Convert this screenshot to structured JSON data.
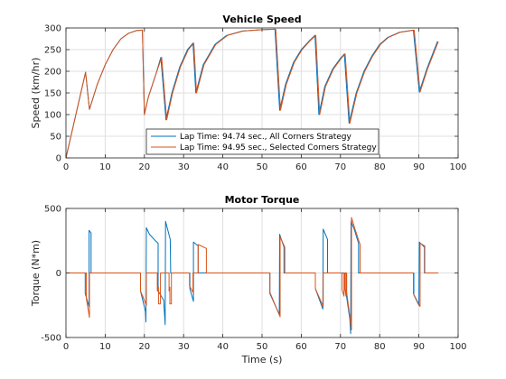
{
  "colors": {
    "series1": "#0072BD",
    "series2": "#D95319",
    "grid": "#dfdfdf",
    "axis": "#262626"
  },
  "chart_data": [
    {
      "type": "line",
      "title": "Vehicle Speed",
      "xlabel": "",
      "ylabel": "Speed (km/hr)",
      "xlim": [
        0,
        100
      ],
      "ylim": [
        0,
        300
      ],
      "xticks": [
        0,
        10,
        20,
        30,
        40,
        50,
        60,
        70,
        80,
        90,
        100
      ],
      "yticks": [
        0,
        50,
        100,
        150,
        200,
        250,
        300
      ],
      "grid": true,
      "legend_position": "bottom-center",
      "series": [
        {
          "name": "Lap Time: 94.74 sec., All Corners Strategy",
          "color": "#0072BD",
          "points": [
            [
              0,
              0
            ],
            [
              5,
              198
            ],
            [
              6,
              112
            ],
            [
              8,
              170
            ],
            [
              10,
              215
            ],
            [
              12,
              250
            ],
            [
              14,
              275
            ],
            [
              16,
              288
            ],
            [
              18,
              294
            ],
            [
              19.5,
              295
            ],
            [
              20,
              100
            ],
            [
              21,
              140
            ],
            [
              23,
              195
            ],
            [
              24.2,
              232
            ],
            [
              25.5,
              88
            ],
            [
              27,
              150
            ],
            [
              29,
              210
            ],
            [
              31,
              250
            ],
            [
              32.4,
              265
            ],
            [
              33.1,
              150
            ],
            [
              35,
              215
            ],
            [
              38,
              262
            ],
            [
              41,
              283
            ],
            [
              45,
              293
            ],
            [
              50,
              296
            ],
            [
              53.3,
              297
            ],
            [
              54.5,
              110
            ],
            [
              56,
              170
            ],
            [
              58,
              220
            ],
            [
              60,
              250
            ],
            [
              62,
              270
            ],
            [
              63.5,
              283
            ],
            [
              64.5,
              100
            ],
            [
              66,
              165
            ],
            [
              68,
              205
            ],
            [
              70,
              230
            ],
            [
              71,
              240
            ],
            [
              72.2,
              80
            ],
            [
              74,
              150
            ],
            [
              76,
              200
            ],
            [
              78,
              235
            ],
            [
              80,
              262
            ],
            [
              82,
              278
            ],
            [
              85,
              290
            ],
            [
              88.6,
              295
            ],
            [
              90.1,
              152
            ],
            [
              92,
              205
            ],
            [
              94.74,
              269
            ]
          ]
        },
        {
          "name": "Lap Time: 94.95 sec., Selected Corners Strategy",
          "color": "#D95319",
          "points": [
            [
              0,
              0
            ],
            [
              5,
              198
            ],
            [
              6,
              112
            ],
            [
              8,
              170
            ],
            [
              10,
              215
            ],
            [
              12,
              250
            ],
            [
              14,
              275
            ],
            [
              16,
              288
            ],
            [
              18,
              294
            ],
            [
              19.5,
              295
            ],
            [
              20,
              100
            ],
            [
              21,
              140
            ],
            [
              23,
              195
            ],
            [
              24.4,
              232
            ],
            [
              25.7,
              88
            ],
            [
              27.2,
              150
            ],
            [
              29.2,
              210
            ],
            [
              31.2,
              250
            ],
            [
              32.6,
              265
            ],
            [
              33.3,
              150
            ],
            [
              35.2,
              215
            ],
            [
              38.2,
              262
            ],
            [
              41.2,
              283
            ],
            [
              45.2,
              293
            ],
            [
              50.2,
              296
            ],
            [
              53.5,
              297
            ],
            [
              54.7,
              110
            ],
            [
              56.2,
              170
            ],
            [
              58.2,
              220
            ],
            [
              60.2,
              250
            ],
            [
              62.2,
              270
            ],
            [
              63.7,
              283
            ],
            [
              64.7,
              100
            ],
            [
              66.2,
              165
            ],
            [
              68.2,
              205
            ],
            [
              70.2,
              230
            ],
            [
              71.2,
              240
            ],
            [
              72.4,
              80
            ],
            [
              74.2,
              150
            ],
            [
              76.2,
              200
            ],
            [
              78.2,
              235
            ],
            [
              80.2,
              262
            ],
            [
              82.2,
              278
            ],
            [
              85.2,
              290
            ],
            [
              88.8,
              295
            ],
            [
              90.3,
              152
            ],
            [
              92.2,
              205
            ],
            [
              94.95,
              269
            ]
          ]
        }
      ]
    },
    {
      "type": "line",
      "title": "Motor Torque",
      "xlabel": "Time (s)",
      "ylabel": "Torque (N*m)",
      "xlim": [
        0,
        100
      ],
      "ylim": [
        -500,
        500
      ],
      "xticks": [
        0,
        10,
        20,
        30,
        40,
        50,
        60,
        70,
        80,
        90,
        100
      ],
      "yticks": [
        -500,
        0,
        500
      ],
      "grid": true,
      "series": [
        {
          "name": "Lap Time: 94.74 sec., All Corners Strategy",
          "color": "#0072BD",
          "points": [
            [
              0,
              0
            ],
            [
              4.9,
              0
            ],
            [
              4.9,
              -160
            ],
            [
              5.9,
              -260
            ],
            [
              5.9,
              330
            ],
            [
              6.4,
              310
            ],
            [
              6.4,
              0
            ],
            [
              19,
              0
            ],
            [
              19,
              -140
            ],
            [
              20.3,
              -300
            ],
            [
              20.4,
              -380
            ],
            [
              20.5,
              350
            ],
            [
              21.3,
              300
            ],
            [
              22.8,
              250
            ],
            [
              23.5,
              230
            ],
            [
              23.5,
              -140
            ],
            [
              24.9,
              -210
            ],
            [
              25.3,
              -400
            ],
            [
              25.4,
              400
            ],
            [
              26.6,
              260
            ],
            [
              26.7,
              0
            ],
            [
              31.6,
              0
            ],
            [
              31.6,
              -120
            ],
            [
              32.5,
              -220
            ],
            [
              32.5,
              240
            ],
            [
              33.7,
              210
            ],
            [
              33.7,
              0
            ],
            [
              52,
              0
            ],
            [
              52,
              -160
            ],
            [
              54.4,
              -320
            ],
            [
              54.5,
              300
            ],
            [
              55.6,
              200
            ],
            [
              55.6,
              0
            ],
            [
              63.6,
              0
            ],
            [
              63.6,
              -120
            ],
            [
              65.5,
              -280
            ],
            [
              65.6,
              340
            ],
            [
              66.7,
              260
            ],
            [
              66.7,
              0
            ],
            [
              71.4,
              0
            ],
            [
              71.4,
              -150
            ],
            [
              72.4,
              -360
            ],
            [
              72.6,
              -470
            ],
            [
              72.7,
              400
            ],
            [
              73.5,
              340
            ],
            [
              74.6,
              230
            ],
            [
              74.6,
              0
            ],
            [
              88.7,
              0
            ],
            [
              88.7,
              -170
            ],
            [
              90,
              -250
            ],
            [
              90.1,
              240
            ],
            [
              91.4,
              200
            ],
            [
              91.4,
              0
            ],
            [
              94.74,
              0
            ]
          ]
        },
        {
          "name": "Lap Time: 94.95 sec., Selected Corners Strategy",
          "color": "#D95319",
          "points": [
            [
              0,
              0
            ],
            [
              5.2,
              0
            ],
            [
              5.2,
              -200
            ],
            [
              6,
              -345
            ],
            [
              6,
              0
            ],
            [
              19,
              0
            ],
            [
              19,
              -140
            ],
            [
              20.5,
              -250
            ],
            [
              20.5,
              0
            ],
            [
              23.3,
              0
            ],
            [
              23.3,
              -140
            ],
            [
              23.6,
              -110
            ],
            [
              23.6,
              -240
            ],
            [
              24.1,
              -240
            ],
            [
              24.1,
              0
            ],
            [
              26.3,
              0
            ],
            [
              26.3,
              -140
            ],
            [
              26.5,
              -110
            ],
            [
              26.5,
              -240
            ],
            [
              26.9,
              -240
            ],
            [
              26.9,
              0
            ],
            [
              31.5,
              0
            ],
            [
              31.5,
              -100
            ],
            [
              32.4,
              -150
            ],
            [
              32.4,
              0
            ],
            [
              33.7,
              0
            ],
            [
              33.7,
              220
            ],
            [
              35.8,
              190
            ],
            [
              35.8,
              0
            ],
            [
              52,
              0
            ],
            [
              52,
              -150
            ],
            [
              54.6,
              -340
            ],
            [
              54.6,
              280
            ],
            [
              55.8,
              200
            ],
            [
              55.8,
              0
            ],
            [
              63.6,
              0
            ],
            [
              63.6,
              -120
            ],
            [
              65.6,
              -260
            ],
            [
              65.6,
              0
            ],
            [
              70.4,
              0
            ],
            [
              70.4,
              -130
            ],
            [
              70.9,
              -180
            ],
            [
              70.9,
              0
            ],
            [
              71.1,
              0
            ],
            [
              71.1,
              -120
            ],
            [
              71.4,
              -180
            ],
            [
              71.4,
              0
            ],
            [
              71.6,
              0
            ],
            [
              71.6,
              -150
            ],
            [
              72.8,
              -440
            ],
            [
              72.8,
              430
            ],
            [
              73.6,
              350
            ],
            [
              75,
              220
            ],
            [
              75,
              0
            ],
            [
              88.6,
              0
            ],
            [
              88.6,
              -160
            ],
            [
              90.3,
              -260
            ],
            [
              90.3,
              230
            ],
            [
              91.5,
              210
            ],
            [
              91.5,
              0
            ],
            [
              94.95,
              0
            ]
          ]
        }
      ]
    }
  ]
}
